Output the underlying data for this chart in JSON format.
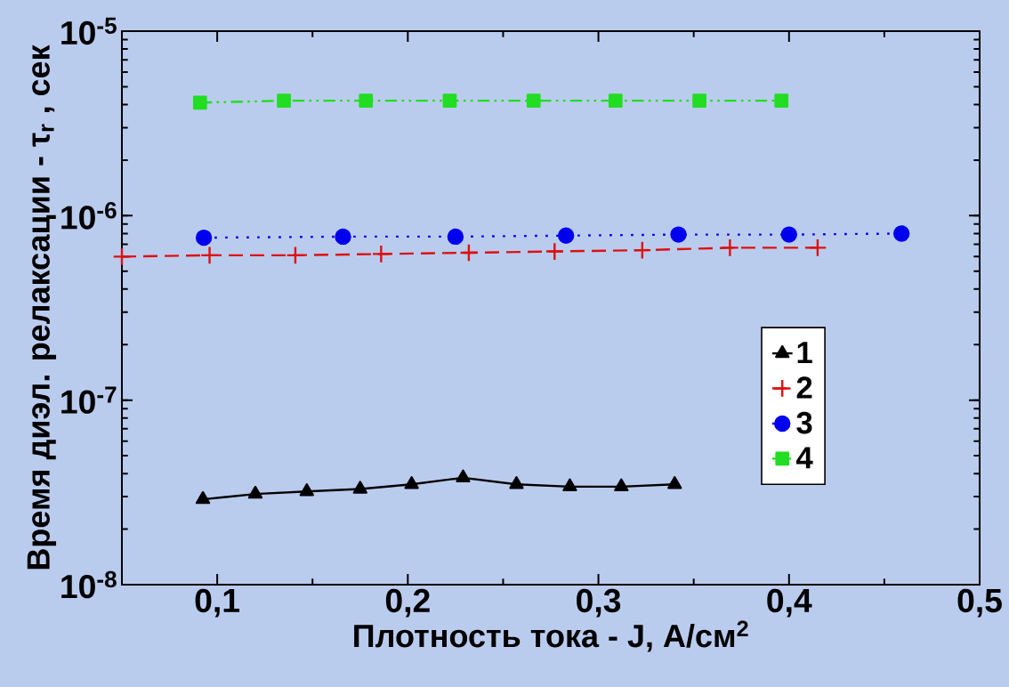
{
  "chart_data": {
    "type": "line",
    "xlabel": "Плотность тока - J, A/см$^{2}$",
    "ylabel": "Время диэл. релаксации - τ$_{r}$ , сек",
    "log": "y",
    "grid": false,
    "legend": "right",
    "xlim": [
      0.05,
      0.5
    ],
    "xticks": [
      {
        "value": 0.1,
        "label": "0,1"
      },
      {
        "value": 0.2,
        "label": "0,2"
      },
      {
        "value": 0.3,
        "label": "0,3"
      },
      {
        "value": 0.4,
        "label": "0,4"
      },
      {
        "value": 0.5,
        "label": "0,5"
      }
    ],
    "ylim": [
      1e-08,
      1e-05
    ],
    "yticks": [
      {
        "value": 1e-08,
        "label": "10$^{-8}$"
      },
      {
        "value": 1e-07,
        "label": "10$^{-7}$"
      },
      {
        "value": 1e-06,
        "label": "10$^{-6}$"
      },
      {
        "value": 1e-05,
        "label": "10$^{-5}$"
      }
    ],
    "series": [
      {
        "name": "1",
        "color": "#000000",
        "marker": "triangle",
        "line_style": "solid",
        "x": [
          0.0925,
          0.12,
          0.147,
          0.175,
          0.202,
          0.229,
          0.257,
          0.285,
          0.312,
          0.34
        ],
        "values": [
          2.9e-08,
          3.1e-08,
          3.2e-08,
          3.3e-08,
          3.5e-08,
          3.8e-08,
          3.5e-08,
          3.4e-08,
          3.4e-08,
          3.5e-08
        ]
      },
      {
        "name": "2",
        "color": "#dd1111",
        "marker": "cross",
        "line_style": "dashed",
        "x": [
          0.05,
          0.096,
          0.141,
          0.186,
          0.232,
          0.277,
          0.323,
          0.369,
          0.415
        ],
        "values": [
          6e-07,
          6.1e-07,
          6.1e-07,
          6.2e-07,
          6.3e-07,
          6.4e-07,
          6.5e-07,
          6.7e-07,
          6.7e-07
        ]
      },
      {
        "name": "3",
        "color": "#0000ee",
        "marker": "circle",
        "line_style": "dotted",
        "x": [
          0.093,
          0.166,
          0.225,
          0.283,
          0.342,
          0.4,
          0.459
        ],
        "values": [
          7.6e-07,
          7.7e-07,
          7.7e-07,
          7.8e-07,
          7.9e-07,
          7.9e-07,
          8e-07
        ]
      },
      {
        "name": "4",
        "color": "#22dd22",
        "marker": "square",
        "line_style": "dashdotdot",
        "x": [
          0.091,
          0.135,
          0.178,
          0.222,
          0.266,
          0.309,
          0.353,
          0.396
        ],
        "values": [
          4.1e-06,
          4.2e-06,
          4.2e-06,
          4.2e-06,
          4.2e-06,
          4.2e-06,
          4.2e-06,
          4.2e-06
        ]
      }
    ]
  }
}
